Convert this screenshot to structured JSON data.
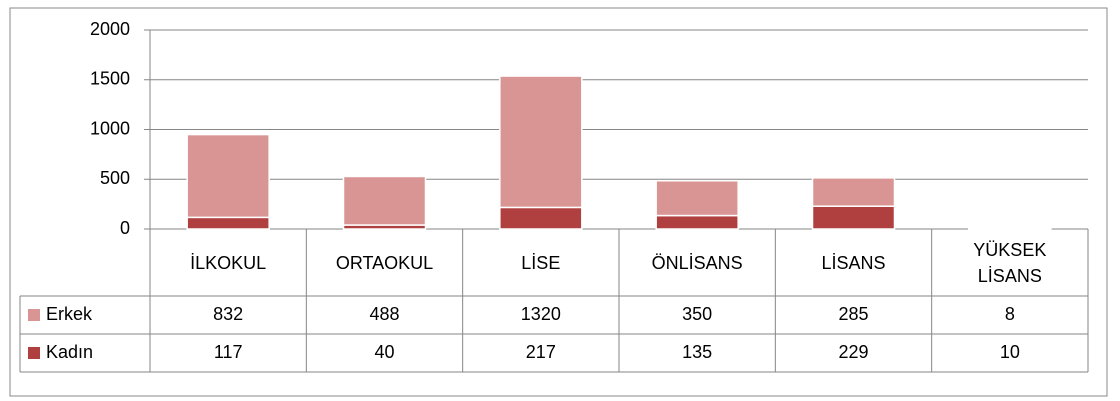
{
  "chart_data": {
    "type": "bar",
    "stacked": true,
    "categories": [
      "İLKOKUL",
      "ORTAOKUL",
      "LİSE",
      "ÖNLİSANS",
      "LİSANS",
      "YÜKSEK LİSANS"
    ],
    "series": [
      {
        "name": "Kadın",
        "color": "#b0403f",
        "values": [
          117,
          40,
          217,
          135,
          229,
          10
        ]
      },
      {
        "name": "Erkek",
        "color": "#d99594",
        "values": [
          832,
          488,
          1320,
          350,
          285,
          8
        ]
      }
    ],
    "ylim": [
      0,
      2000
    ],
    "yticks": [
      0,
      500,
      1000,
      1500,
      2000
    ],
    "grid": true,
    "data_table": true
  }
}
